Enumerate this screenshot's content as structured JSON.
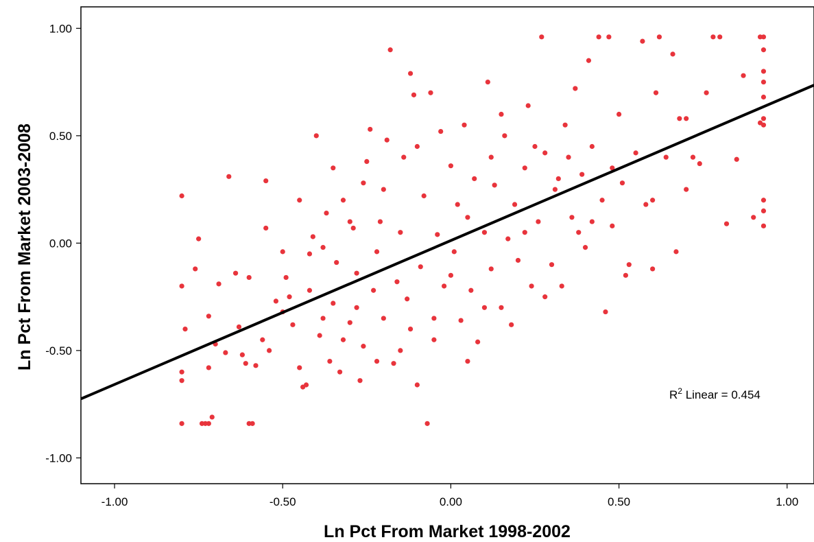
{
  "chart_data": {
    "type": "scatter",
    "xlabel": "Ln Pct From Market 1998-2002",
    "ylabel": "Ln Pct From Market 2003-2008",
    "xlim": [
      -1.1,
      1.08
    ],
    "ylim": [
      -1.12,
      1.1
    ],
    "x_ticks": [
      -1.0,
      -0.5,
      0.0,
      0.5,
      1.0
    ],
    "x_tick_labels": [
      "-1.00",
      "-0.50",
      "0.00",
      "0.50",
      "1.00"
    ],
    "y_ticks": [
      1.0,
      0.5,
      0.0,
      -0.5,
      -1.0
    ],
    "y_tick_labels": [
      "1.00",
      "0.50",
      "0.00",
      "-0.50",
      "-1.00"
    ],
    "grid": false,
    "point_color": "#e8343c",
    "fit_line": {
      "type": "linear",
      "slope": 0.67,
      "intercept": 0.012,
      "color": "#000000"
    },
    "annotation": {
      "label_base": "R",
      "superscript": "2",
      "label_rest": " Linear = 0.454"
    },
    "points": [
      [
        -0.8,
        0.22
      ],
      [
        -0.8,
        -0.2
      ],
      [
        -0.8,
        -0.6
      ],
      [
        -0.8,
        -0.64
      ],
      [
        -0.8,
        -0.84
      ],
      [
        -0.79,
        -0.4
      ],
      [
        -0.76,
        -0.12
      ],
      [
        -0.75,
        0.02
      ],
      [
        -0.74,
        -0.84
      ],
      [
        -0.73,
        -0.84
      ],
      [
        -0.72,
        -0.84
      ],
      [
        -0.71,
        -0.81
      ],
      [
        -0.72,
        -0.34
      ],
      [
        -0.72,
        -0.58
      ],
      [
        -0.7,
        -0.47
      ],
      [
        -0.69,
        -0.19
      ],
      [
        -0.67,
        -0.51
      ],
      [
        -0.66,
        0.31
      ],
      [
        -0.64,
        -0.14
      ],
      [
        -0.63,
        -0.39
      ],
      [
        -0.62,
        -0.52
      ],
      [
        -0.61,
        -0.56
      ],
      [
        -0.6,
        -0.16
      ],
      [
        -0.6,
        -0.84
      ],
      [
        -0.59,
        -0.84
      ],
      [
        -0.58,
        -0.57
      ],
      [
        -0.56,
        -0.45
      ],
      [
        -0.55,
        0.29
      ],
      [
        -0.55,
        0.07
      ],
      [
        -0.54,
        -0.5
      ],
      [
        -0.52,
        -0.27
      ],
      [
        -0.5,
        -0.04
      ],
      [
        -0.5,
        -0.32
      ],
      [
        -0.49,
        -0.16
      ],
      [
        -0.47,
        -0.38
      ],
      [
        -0.45,
        -0.58
      ],
      [
        -0.44,
        -0.67
      ],
      [
        -0.43,
        -0.66
      ],
      [
        -0.42,
        -0.22
      ],
      [
        -0.41,
        0.03
      ],
      [
        -0.4,
        0.5
      ],
      [
        -0.39,
        -0.43
      ],
      [
        -0.38,
        -0.02
      ],
      [
        -0.37,
        0.14
      ],
      [
        -0.36,
        -0.55
      ],
      [
        -0.35,
        -0.28
      ],
      [
        -0.34,
        -0.09
      ],
      [
        -0.33,
        -0.6
      ],
      [
        -0.32,
        0.2
      ],
      [
        -0.3,
        -0.37
      ],
      [
        -0.29,
        0.07
      ],
      [
        -0.28,
        -0.14
      ],
      [
        -0.27,
        -0.64
      ],
      [
        -0.26,
        -0.48
      ],
      [
        -0.25,
        0.38
      ],
      [
        -0.24,
        0.53
      ],
      [
        -0.23,
        -0.22
      ],
      [
        -0.22,
        -0.04
      ],
      [
        -0.21,
        0.1
      ],
      [
        -0.2,
        -0.35
      ],
      [
        -0.19,
        0.48
      ],
      [
        -0.18,
        0.9
      ],
      [
        -0.17,
        -0.56
      ],
      [
        -0.16,
        -0.18
      ],
      [
        -0.15,
        0.05
      ],
      [
        -0.14,
        0.4
      ],
      [
        -0.13,
        -0.26
      ],
      [
        -0.12,
        0.79
      ],
      [
        -0.11,
        0.69
      ],
      [
        -0.1,
        -0.66
      ],
      [
        -0.09,
        -0.11
      ],
      [
        -0.08,
        0.22
      ],
      [
        -0.07,
        -0.84
      ],
      [
        -0.06,
        0.7
      ],
      [
        -0.05,
        -0.45
      ],
      [
        -0.04,
        0.04
      ],
      [
        -0.03,
        0.52
      ],
      [
        -0.02,
        -0.2
      ],
      [
        0.0,
        0.36
      ],
      [
        0.01,
        -0.04
      ],
      [
        0.02,
        0.18
      ],
      [
        0.03,
        -0.36
      ],
      [
        0.04,
        0.55
      ],
      [
        0.05,
        0.12
      ],
      [
        0.06,
        -0.22
      ],
      [
        0.07,
        0.3
      ],
      [
        0.08,
        -0.46
      ],
      [
        0.1,
        0.05
      ],
      [
        0.11,
        0.75
      ],
      [
        0.12,
        -0.12
      ],
      [
        0.13,
        0.27
      ],
      [
        0.15,
        -0.3
      ],
      [
        0.16,
        0.5
      ],
      [
        0.17,
        0.02
      ],
      [
        0.19,
        0.18
      ],
      [
        0.2,
        -0.08
      ],
      [
        0.22,
        0.35
      ],
      [
        0.23,
        0.64
      ],
      [
        0.24,
        -0.2
      ],
      [
        0.26,
        0.1
      ],
      [
        0.27,
        0.96
      ],
      [
        0.28,
        0.42
      ],
      [
        0.3,
        -0.1
      ],
      [
        0.31,
        0.25
      ],
      [
        0.33,
        -0.2
      ],
      [
        0.34,
        0.55
      ],
      [
        0.36,
        0.12
      ],
      [
        0.37,
        0.72
      ],
      [
        0.39,
        0.32
      ],
      [
        0.4,
        -0.02
      ],
      [
        0.41,
        0.85
      ],
      [
        0.42,
        0.45
      ],
      [
        0.44,
        0.96
      ],
      [
        0.45,
        0.2
      ],
      [
        0.46,
        -0.32
      ],
      [
        0.47,
        0.96
      ],
      [
        0.48,
        0.08
      ],
      [
        0.5,
        0.6
      ],
      [
        0.51,
        0.28
      ],
      [
        0.53,
        -0.1
      ],
      [
        0.55,
        0.42
      ],
      [
        0.57,
        0.94
      ],
      [
        0.58,
        0.18
      ],
      [
        0.6,
        -0.12
      ],
      [
        0.61,
        0.7
      ],
      [
        0.62,
        0.96
      ],
      [
        0.64,
        0.4
      ],
      [
        0.66,
        0.88
      ],
      [
        0.67,
        -0.04
      ],
      [
        0.68,
        0.58
      ],
      [
        0.7,
        0.25
      ],
      [
        0.72,
        0.4
      ],
      [
        0.74,
        0.37
      ],
      [
        0.76,
        0.7
      ],
      [
        0.78,
        0.96
      ],
      [
        0.8,
        0.96
      ],
      [
        0.82,
        0.09
      ],
      [
        0.85,
        0.39
      ],
      [
        0.87,
        0.78
      ],
      [
        0.9,
        0.12
      ],
      [
        0.92,
        0.96
      ],
      [
        0.93,
        0.96
      ],
      [
        0.93,
        0.9
      ],
      [
        0.93,
        0.8
      ],
      [
        0.93,
        0.75
      ],
      [
        0.93,
        0.68
      ],
      [
        0.93,
        0.58
      ],
      [
        0.93,
        0.55
      ],
      [
        0.93,
        0.2
      ],
      [
        0.93,
        0.15
      ],
      [
        0.93,
        0.08
      ],
      [
        0.92,
        0.56
      ],
      [
        -0.45,
        0.2
      ],
      [
        -0.35,
        0.35
      ],
      [
        -0.3,
        0.1
      ],
      [
        -0.22,
        -0.55
      ],
      [
        -0.15,
        -0.5
      ],
      [
        -0.28,
        -0.3
      ],
      [
        -0.2,
        0.25
      ],
      [
        -0.1,
        0.45
      ],
      [
        0.05,
        -0.55
      ],
      [
        0.15,
        0.6
      ],
      [
        0.25,
        0.45
      ],
      [
        0.35,
        0.4
      ],
      [
        0.1,
        -0.3
      ],
      [
        -0.05,
        -0.35
      ],
      [
        0.18,
        -0.38
      ],
      [
        0.28,
        -0.25
      ],
      [
        0.38,
        0.05
      ],
      [
        0.48,
        0.35
      ],
      [
        0.52,
        -0.15
      ],
      [
        -0.42,
        -0.05
      ],
      [
        -0.48,
        -0.25
      ],
      [
        -0.38,
        -0.35
      ],
      [
        -0.32,
        -0.45
      ],
      [
        -0.26,
        0.28
      ],
      [
        -0.12,
        -0.4
      ],
      [
        0.0,
        -0.15
      ],
      [
        0.12,
        0.4
      ],
      [
        0.22,
        0.05
      ],
      [
        0.32,
        0.3
      ],
      [
        0.42,
        0.1
      ],
      [
        0.6,
        0.2
      ],
      [
        0.7,
        0.58
      ]
    ]
  }
}
